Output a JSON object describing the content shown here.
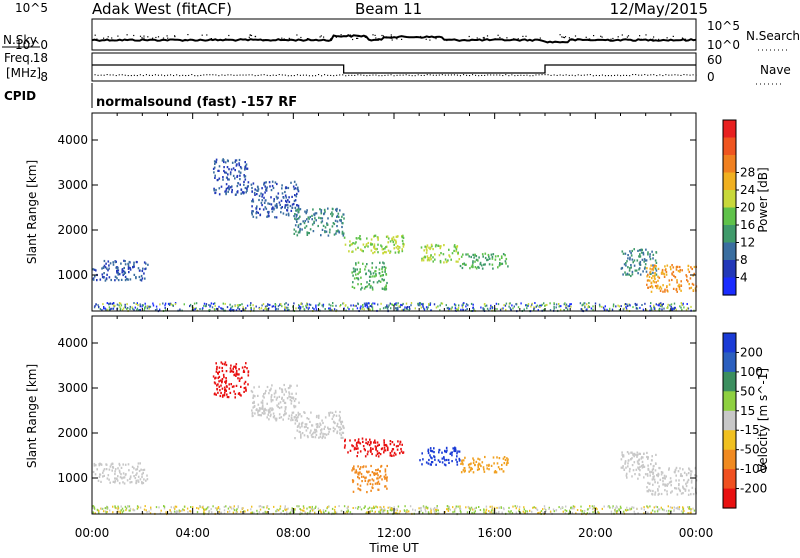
{
  "header": {
    "station": "Adak West (fitACF)",
    "beam": "Beam 11",
    "date": "12/May/2015"
  },
  "top_panels": {
    "nsky": {
      "label": "N.Sky",
      "ticks": [
        "10^5",
        "10^0"
      ]
    },
    "nsearch": {
      "label": "N.Search",
      "ticks": [
        "10^5",
        "10^0"
      ]
    },
    "freq": {
      "label_line1": "Freq.",
      "label_line2": "[MHz]",
      "ticks": [
        "18",
        "8"
      ]
    },
    "nave": {
      "label": "Nave",
      "ticks": [
        "60",
        "0"
      ]
    },
    "cpid_label": "CPID",
    "cpid_text": "normalsound (fast) -157 RF"
  },
  "chart_data": [
    {
      "type": "heatmap",
      "name": "power",
      "ylabel": "Slant Range [km]",
      "ylim": [
        200,
        4600
      ],
      "yticks": [
        "1000",
        "2000",
        "3000",
        "4000"
      ],
      "xlim_hours": [
        0,
        24
      ],
      "xticks": [
        "00:00",
        "04:00",
        "08:00",
        "12:00",
        "16:00",
        "20:00",
        "00:00"
      ],
      "colorbar": {
        "label": "Power [dB]",
        "ticks": [
          "4",
          "8",
          "12",
          "16",
          "20",
          "24",
          "28"
        ],
        "colors": [
          "#1a2cff",
          "#2238b8",
          "#3a6ea0",
          "#3f9a6a",
          "#5fc24a",
          "#c8d83a",
          "#f0b020",
          "#f08020",
          "#ef5520",
          "#e82020"
        ]
      },
      "echo_regions": [
        {
          "t": [
            0.0,
            2.2
          ],
          "r": [
            900,
            1350
          ],
          "level": 1
        },
        {
          "t": [
            4.8,
            6.2
          ],
          "r": [
            2800,
            3600
          ],
          "level": 1
        },
        {
          "t": [
            6.3,
            8.2
          ],
          "r": [
            2300,
            3100
          ],
          "level": 1
        },
        {
          "t": [
            8.0,
            10.0
          ],
          "r": [
            1900,
            2500
          ],
          "level": 2
        },
        {
          "t": [
            10.0,
            12.4
          ],
          "r": [
            1500,
            1900
          ],
          "level": 4
        },
        {
          "t": [
            10.3,
            11.7
          ],
          "r": [
            700,
            1300
          ],
          "level": 3
        },
        {
          "t": [
            13.0,
            14.6
          ],
          "r": [
            1300,
            1700
          ],
          "level": 4
        },
        {
          "t": [
            14.6,
            16.5
          ],
          "r": [
            1150,
            1500
          ],
          "level": 3
        },
        {
          "t": [
            21.0,
            22.4
          ],
          "r": [
            1000,
            1600
          ],
          "level": 2
        },
        {
          "t": [
            22.0,
            24.0
          ],
          "r": [
            650,
            1250
          ],
          "level": 6
        }
      ]
    },
    {
      "type": "heatmap",
      "name": "velocity",
      "ylabel": "Slant Range [km]",
      "ylim": [
        200,
        4600
      ],
      "yticks": [
        "1000",
        "2000",
        "3000",
        "4000"
      ],
      "xlim_hours": [
        0,
        24
      ],
      "xticks": [
        "00:00",
        "04:00",
        "08:00",
        "12:00",
        "16:00",
        "20:00",
        "00:00"
      ],
      "xlabel": "Time UT",
      "colorbar": {
        "label": "Velocity [m s^-1]",
        "ticks": [
          "200",
          "100",
          "50",
          "15",
          "-15",
          "-50",
          "-100",
          "-200"
        ],
        "colors": [
          "#1a3bd6",
          "#2b5fbf",
          "#3c8f5f",
          "#8ed040",
          "#c8c8c8",
          "#f0c020",
          "#f08a20",
          "#f05020",
          "#e81010"
        ]
      },
      "echo_regions": [
        {
          "t": [
            0.0,
            2.2
          ],
          "r": [
            900,
            1350
          ],
          "color": "#c8c8c8"
        },
        {
          "t": [
            4.8,
            6.2
          ],
          "r": [
            2800,
            3600
          ],
          "color": "#e81010"
        },
        {
          "t": [
            6.3,
            8.2
          ],
          "r": [
            2300,
            3100
          ],
          "color": "#c8c8c8"
        },
        {
          "t": [
            8.0,
            10.0
          ],
          "r": [
            1900,
            2500
          ],
          "color": "#c8c8c8"
        },
        {
          "t": [
            10.0,
            12.4
          ],
          "r": [
            1500,
            1900
          ],
          "color": "#e81010"
        },
        {
          "t": [
            10.3,
            11.7
          ],
          "r": [
            700,
            1300
          ],
          "color": "#f08a20"
        },
        {
          "t": [
            13.0,
            14.6
          ],
          "r": [
            1300,
            1700
          ],
          "color": "#1a3bd6"
        },
        {
          "t": [
            14.6,
            16.5
          ],
          "r": [
            1150,
            1500
          ],
          "color": "#f0a020"
        },
        {
          "t": [
            21.0,
            22.4
          ],
          "r": [
            1000,
            1600
          ],
          "color": "#c8c8c8"
        },
        {
          "t": [
            22.0,
            24.0
          ],
          "r": [
            650,
            1250
          ],
          "color": "#c8c8c8"
        }
      ]
    }
  ]
}
